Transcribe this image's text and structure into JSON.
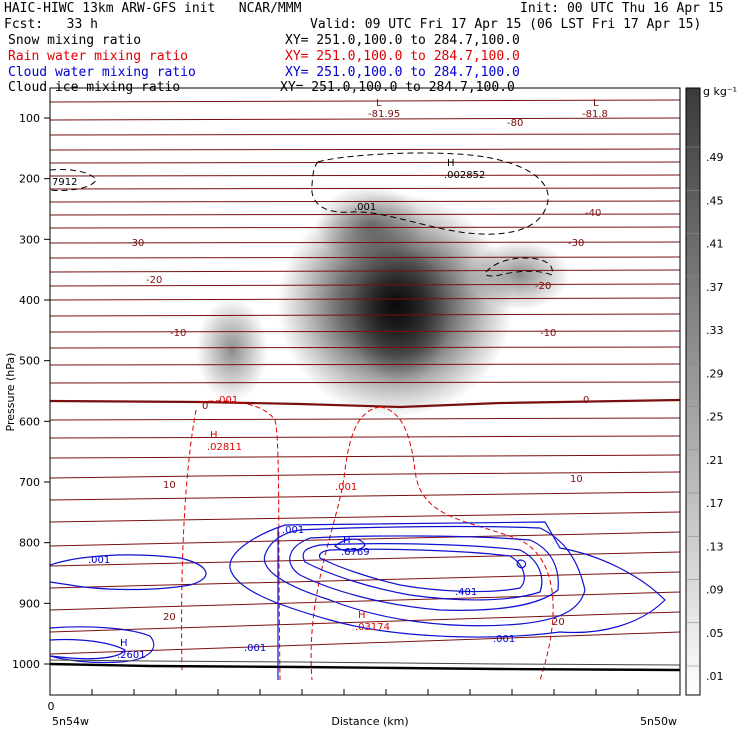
{
  "header": {
    "line1_left": "HAIC-HIWC 13km ARW-GFS init   NCAR/MMM",
    "line1_right": "Init: 00 UTC Thu 16 Apr 15",
    "line2_left": "Fcst:   33 h",
    "line2_right": "Valid: 09 UTC Fri 17 Apr 15 (06 LST Fri 17 Apr 15)",
    "fields": [
      {
        "name": "Snow mixing ratio",
        "xy": "XY= 251.0,100.0 to 284.7,100.0",
        "color": "#000000"
      },
      {
        "name": "Rain water mixing ratio",
        "xy": "XY= 251.0,100.0 to 284.7,100.0",
        "color": "#e00000"
      },
      {
        "name": "Cloud water mixing ratio",
        "xy": "XY= 251.0,100.0 to 284.7,100.0",
        "color": "#0000d0"
      },
      {
        "name": "Cloud ice mixing ratio",
        "xy": "XY= 251.0,100.0 to 284.7,100.0",
        "color": "#000000"
      }
    ]
  },
  "chart_data": {
    "type": "contour",
    "ylabel": "Pressure (hPa)",
    "xlabel": "Distance (km)",
    "x_tick_label": "0",
    "x_left_label": "5n54w",
    "x_right_label": "5n50w",
    "y_ticks": [
      100,
      200,
      300,
      400,
      500,
      600,
      700,
      800,
      900,
      1000
    ],
    "ylim": [
      1010,
      70
    ],
    "colorbar": {
      "unit": "g kg⁻¹",
      "labels": [
        ".49",
        ".45",
        ".41",
        ".37",
        ".33",
        ".29",
        ".25",
        ".21",
        ".17",
        ".13",
        ".09",
        ".05",
        ".01"
      ]
    },
    "temperature_labels": [
      "-81.95",
      "-81.8",
      "-80",
      "-40",
      "-30",
      "-30",
      "-20",
      "-20",
      "-10",
      "-10",
      "0",
      "0",
      "10",
      "10",
      "20",
      "20"
    ],
    "markers": [
      {
        "id": "L1",
        "text": "L"
      },
      {
        "id": "L2",
        "text": "L"
      },
      {
        "id": "H_ice",
        "text": "H",
        "value": ".002852"
      },
      {
        "id": "ice_left",
        "text": "7912"
      },
      {
        "id": "ice_001",
        "text": ".001"
      },
      {
        "id": "H_rain_top",
        "text": "H",
        "value": ".02811"
      },
      {
        "id": "rain_001a",
        "text": ".001"
      },
      {
        "id": "rain_001b",
        "text": ".001"
      },
      {
        "id": "H_cloud",
        "text": "H",
        "value": ".6769"
      },
      {
        "id": "cloud_001a",
        "text": ".001"
      },
      {
        "id": "cloud_001b",
        "text": ".001"
      },
      {
        "id": "cloud_001c",
        "text": ".001"
      },
      {
        "id": "cloud_001d",
        "text": ".001"
      },
      {
        "id": "cloud_401",
        "text": ".401"
      },
      {
        "id": "H_rain_low",
        "text": "H",
        "value": ".03174"
      },
      {
        "id": "H_cloud_left",
        "text": "H",
        "value": ".2601"
      }
    ]
  }
}
